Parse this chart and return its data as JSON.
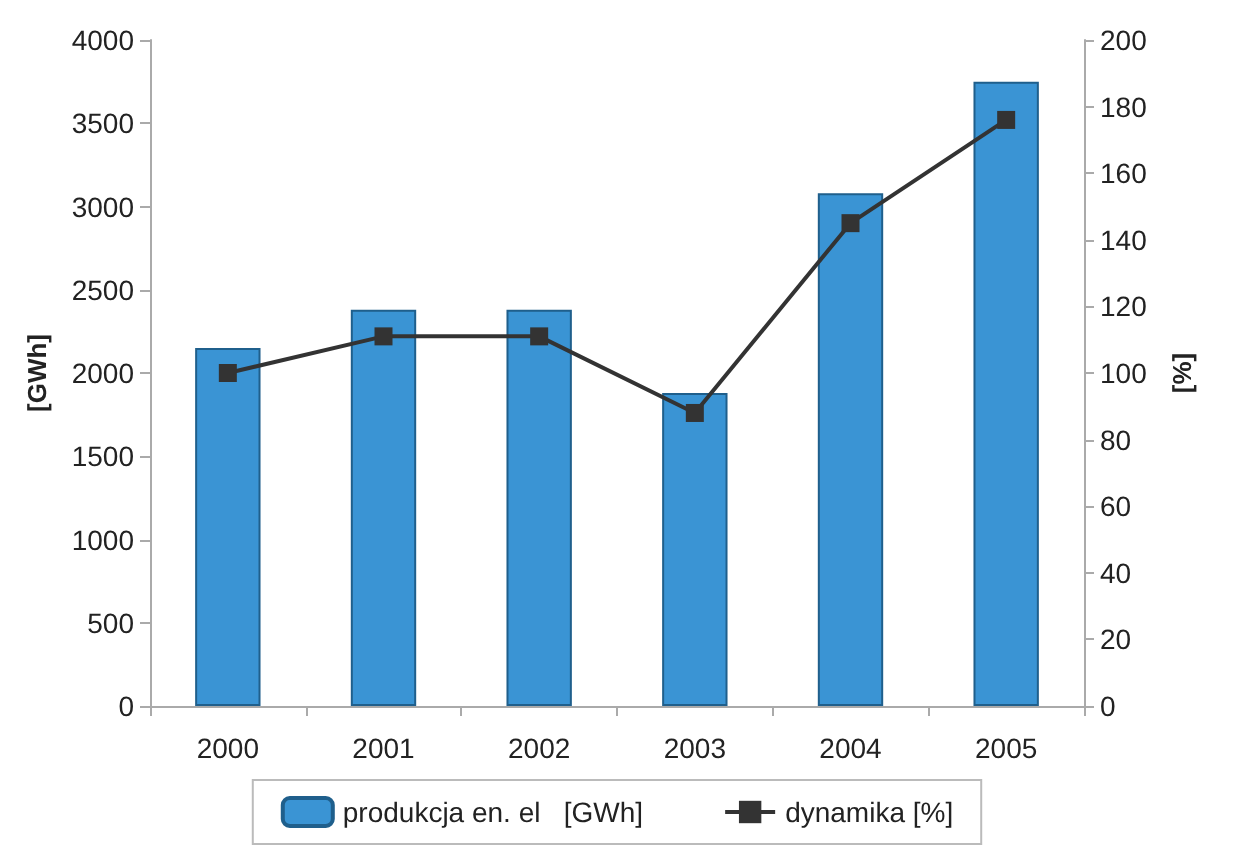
{
  "chart_data": {
    "type": "bar",
    "categories": [
      "2000",
      "2001",
      "2002",
      "2003",
      "2004",
      "2005"
    ],
    "ylabel": "[GWh]",
    "y2label": "[%]",
    "series": [
      {
        "name": "produkcja en. el   [GWh]",
        "color": "#3a94d4",
        "values": [
          2150,
          2380,
          2380,
          1880,
          3080,
          3750
        ]
      },
      {
        "name": "dynamika [%]",
        "type": "line",
        "axis": "y2",
        "color": "#333333",
        "marker": "square",
        "values": [
          100,
          111,
          111,
          88,
          145,
          176
        ]
      }
    ],
    "ylim": [
      0,
      4000
    ],
    "yticks": [
      0,
      500,
      1000,
      1500,
      2000,
      2500,
      3000,
      3500,
      4000
    ],
    "y2lim": [
      0,
      200
    ],
    "y2ticks": [
      0,
      20,
      40,
      60,
      80,
      100,
      120,
      140,
      160,
      180,
      200
    ],
    "grid": false,
    "legend": "bottom"
  }
}
